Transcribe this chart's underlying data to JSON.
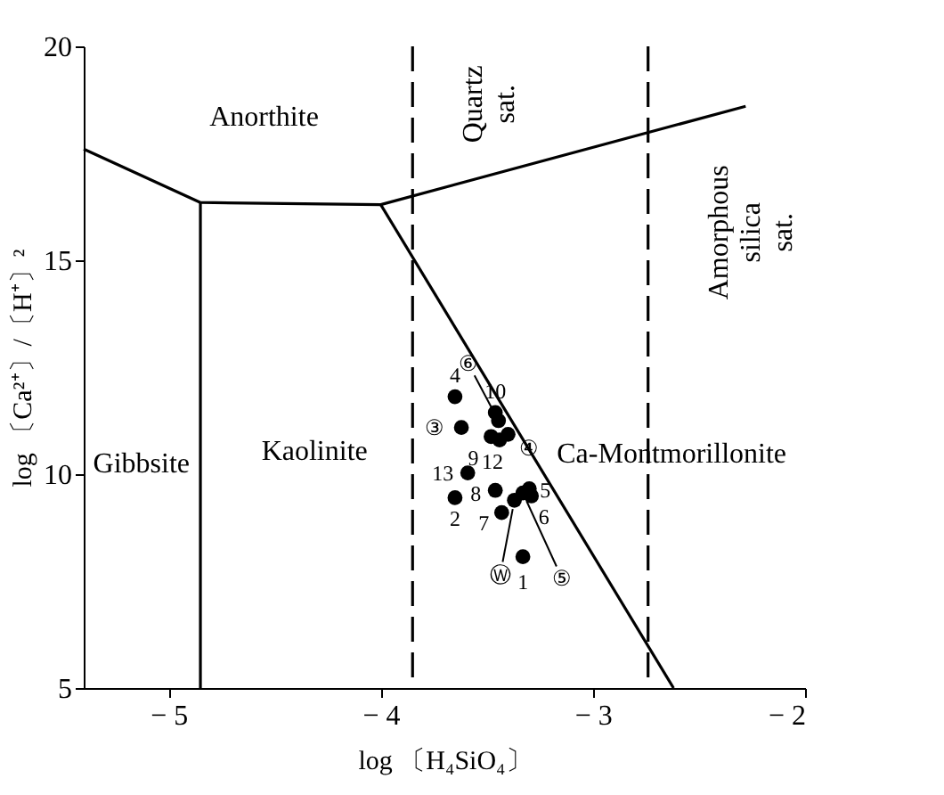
{
  "chart_data": {
    "type": "scatter",
    "xlabel": "log 〔H₄SiO₄〕",
    "ylabel": "log 〔Ca²⁺〕/〔H⁺〕²",
    "xlim": [
      -5.4,
      -2
    ],
    "ylim": [
      5,
      20
    ],
    "xticks": [
      {
        "value": -5,
        "label": "− 5"
      },
      {
        "value": -4,
        "label": "− 4"
      },
      {
        "value": -3,
        "label": "− 3"
      },
      {
        "value": -2,
        "label": "− 2"
      }
    ],
    "yticks": [
      5,
      10,
      15,
      20
    ],
    "grid": false,
    "series": [
      {
        "name": "4",
        "color": "#000000",
        "x": [
          -3.65
        ],
        "values": [
          11.81
        ]
      },
      {
        "name": "③",
        "color": "#000000",
        "x": [
          -3.62
        ],
        "values": [
          11.09
        ]
      },
      {
        "name": "10",
        "color": "#000000",
        "x": [
          -3.46
        ],
        "values": [
          11.44
        ]
      },
      {
        "name": "⑥",
        "color": "#000000",
        "x": [
          -3.445
        ],
        "values": [
          11.25
        ]
      },
      {
        "name": "9",
        "color": "#000000",
        "x": [
          -3.48
        ],
        "values": [
          10.88
        ]
      },
      {
        "name": "12",
        "color": "#000000",
        "x": [
          -3.44
        ],
        "values": [
          10.8
        ]
      },
      {
        "name": "④",
        "color": "#000000",
        "x": [
          -3.4
        ],
        "values": [
          10.93
        ]
      },
      {
        "name": "13",
        "color": "#000000",
        "x": [
          -3.59
        ],
        "values": [
          10.03
        ]
      },
      {
        "name": "2",
        "color": "#000000",
        "x": [
          -3.65
        ],
        "values": [
          9.45
        ]
      },
      {
        "name": "8",
        "color": "#000000",
        "x": [
          -3.46
        ],
        "values": [
          9.62
        ]
      },
      {
        "name": "7",
        "color": "#000000",
        "x": [
          -3.43
        ],
        "values": [
          9.1
        ]
      },
      {
        "name": "5",
        "color": "#000000",
        "x": [
          -3.3
        ],
        "values": [
          9.66
        ]
      },
      {
        "name": "6",
        "color": "#000000",
        "x": [
          -3.29
        ],
        "values": [
          9.49
        ]
      },
      {
        "name": "Ⓦ",
        "color": "#000000",
        "x": [
          -3.37
        ],
        "values": [
          9.39
        ]
      },
      {
        "name": "⑤",
        "color": "#000000",
        "x": [
          -3.33
        ],
        "values": [
          9.56
        ]
      },
      {
        "name": "1",
        "color": "#000000",
        "x": [
          -3.33
        ],
        "values": [
          8.07
        ]
      },
      {
        "type": "line",
        "color": "#000000",
        "x": [
          -5.4,
          -4.85,
          -4.0,
          -2.28
        ],
        "values": [
          17.6,
          16.35,
          16.3,
          18.6
        ]
      },
      {
        "type": "line",
        "color": "#000000",
        "x": [
          -4.85,
          -4.85
        ],
        "values": [
          16.35,
          5
        ]
      },
      {
        "type": "line",
        "color": "#000000",
        "x": [
          -4.0,
          -2.62
        ],
        "values": [
          16.3,
          5
        ]
      }
    ],
    "ref_lines": [
      {
        "axis": "x",
        "value": -3.85,
        "color": "#000000",
        "line_style": "dashed"
      },
      {
        "axis": "x",
        "value": -2.74,
        "color": "#000000",
        "line_style": "dashed"
      }
    ],
    "annotations": [
      "Anorthite",
      "Gibbsite",
      "Kaolinite",
      "Ca-Montmorillonite",
      "Quartz\nsat.",
      "Amorphous\nsilica\nsat."
    ]
  }
}
